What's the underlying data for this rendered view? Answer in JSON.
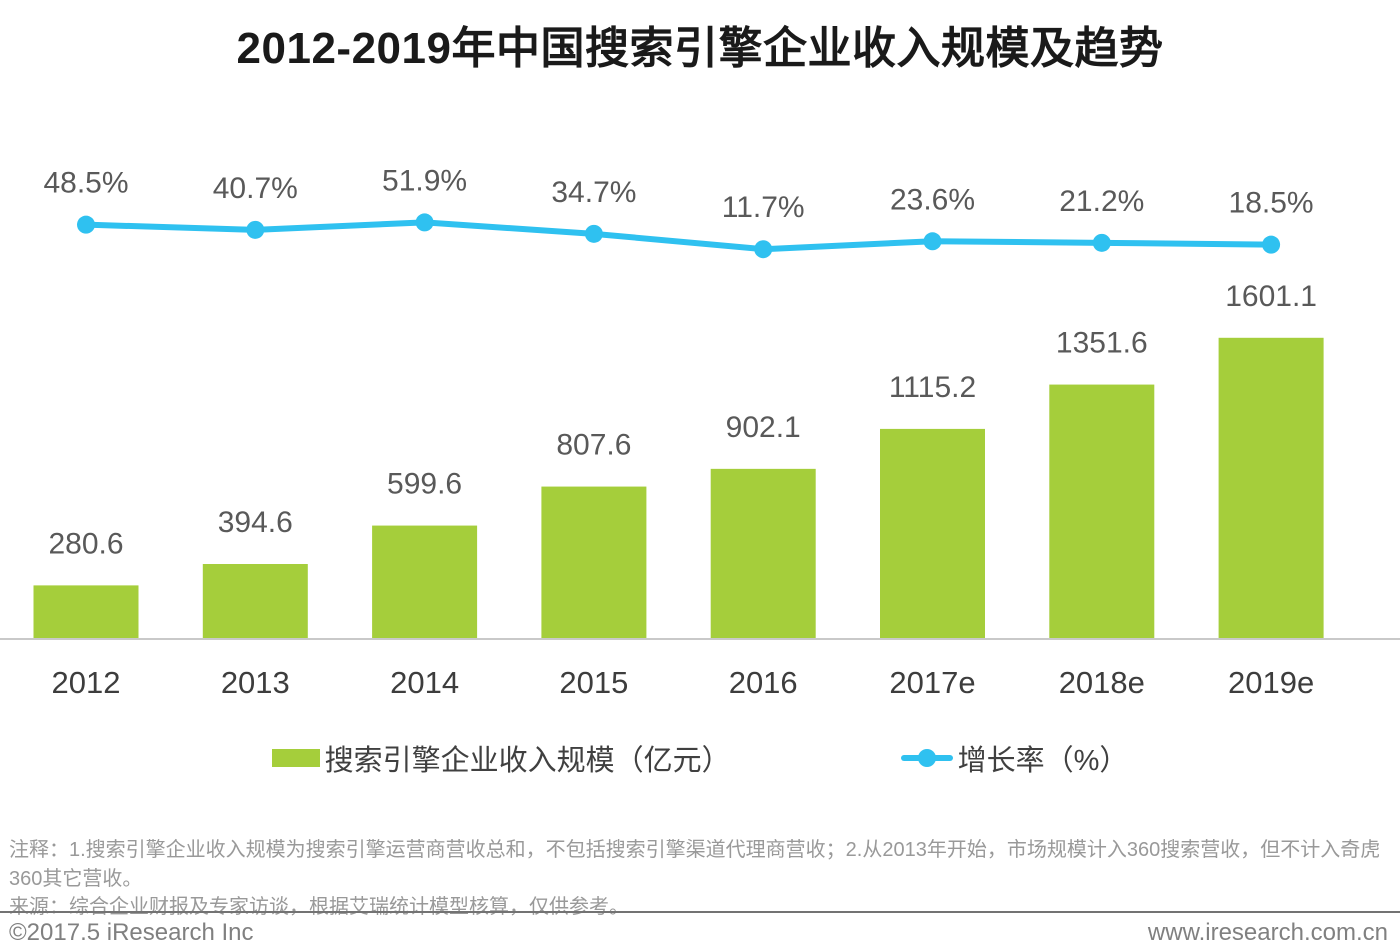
{
  "title": "2012-2019年中国搜索引擎企业收入规模及趋势",
  "chart_data": {
    "type": "combo-bar-line",
    "title": "2012-2019年中国搜索引擎企业收入规模及趋势",
    "categories": [
      "2012",
      "2013",
      "2014",
      "2015",
      "2016",
      "2017e",
      "2018e",
      "2019e"
    ],
    "series": [
      {
        "name": "搜索引擎企业收入规模（亿元）",
        "type": "bar",
        "values": [
          280.6,
          394.6,
          599.6,
          807.6,
          902.1,
          1115.2,
          1351.6,
          1601.1
        ],
        "color": "#a5ce3b"
      },
      {
        "name": "增长率（%）",
        "type": "line",
        "values": [
          48.5,
          40.7,
          51.9,
          34.7,
          11.7,
          23.6,
          21.2,
          18.5
        ],
        "color": "#2fc1f0"
      }
    ],
    "xlabel": "",
    "ylabel": "",
    "ylim_bar": [
      0,
      1700
    ],
    "ylim_line": [
      0,
      60
    ],
    "grid": false,
    "legend_position": "bottom",
    "value_labels_shown": true
  },
  "legend": {
    "bar_label": "搜索引擎企业收入规模（亿元）",
    "line_label": "增长率（%）"
  },
  "notes": {
    "annotation": "注释：1.搜索引擎企业收入规模为搜索引擎运营商营收总和，不包括搜索引擎渠道代理商营收；2.从2013年开始，市场规模计入360搜索营收，但不计入奇虎360其它营收。",
    "source": "来源：综合企业财报及专家访谈，根据艾瑞统计模型核算，仅供参考。"
  },
  "footer": {
    "copyright": "©2017.5 iResearch Inc",
    "website": "www.iresearch.com.cn"
  },
  "colors": {
    "bar": "#a5ce3b",
    "line": "#2fc1f0",
    "axis": "#c9c9c9",
    "value_label": "#595959",
    "x_label": "#3d3d3d"
  }
}
